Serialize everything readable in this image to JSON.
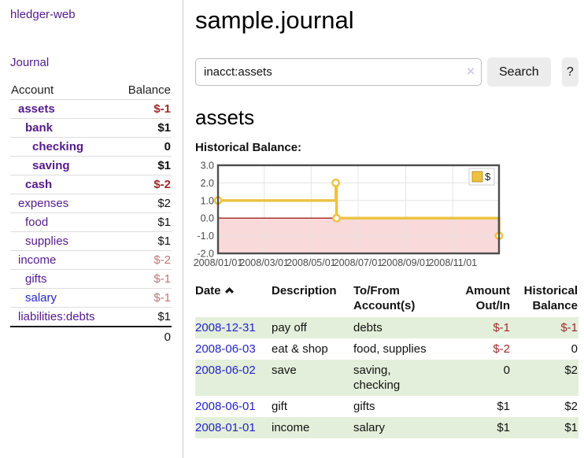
{
  "app": {
    "title": "hledger-web"
  },
  "sidebar": {
    "journal_link": "Journal",
    "table": {
      "headers": [
        "Account",
        "Balance"
      ],
      "rows": [
        {
          "account": "assets",
          "balance": "$-1",
          "indent": 0,
          "bold": true,
          "balance_class": "neg",
          "link": "purple"
        },
        {
          "account": "bank",
          "balance": "$1",
          "indent": 1,
          "bold": true,
          "balance_class": "",
          "link": "purple"
        },
        {
          "account": "checking",
          "balance": "0",
          "indent": 2,
          "bold": true,
          "balance_class": "",
          "link": "purple"
        },
        {
          "account": "saving",
          "balance": "$1",
          "indent": 2,
          "bold": true,
          "balance_class": "",
          "link": "purple"
        },
        {
          "account": "cash",
          "balance": "$-2",
          "indent": 1,
          "bold": true,
          "balance_class": "neg",
          "link": "purple"
        },
        {
          "account": "expenses",
          "balance": "$2",
          "indent": 0,
          "bold": false,
          "balance_class": "",
          "link": "purple"
        },
        {
          "account": "food",
          "balance": "$1",
          "indent": 1,
          "bold": false,
          "balance_class": "",
          "link": "purple"
        },
        {
          "account": "supplies",
          "balance": "$1",
          "indent": 1,
          "bold": false,
          "balance_class": "",
          "link": "purple"
        },
        {
          "account": "income",
          "balance": "$-2",
          "indent": 0,
          "bold": false,
          "balance_class": "neg-soft",
          "link": "purple"
        },
        {
          "account": "gifts",
          "balance": "$-1",
          "indent": 1,
          "bold": false,
          "balance_class": "neg-soft",
          "link": "purple"
        },
        {
          "account": "salary",
          "balance": "$-1",
          "indent": 1,
          "bold": false,
          "balance_class": "neg-soft",
          "link": "blue"
        },
        {
          "account": "liabilities:debts",
          "balance": "$1",
          "indent": 0,
          "bold": false,
          "balance_class": "",
          "link": "purple"
        }
      ],
      "total": "0"
    }
  },
  "header": {
    "title": "sample.journal"
  },
  "search": {
    "value": "inacct:assets",
    "clear_icon": "×",
    "button": "Search",
    "help_button": "?"
  },
  "main": {
    "account_title": "assets",
    "chart_label": "Historical Balance:"
  },
  "chart_data": {
    "type": "line",
    "title": "Historical Balance",
    "series": [
      {
        "name": "$",
        "step": true,
        "points": [
          [
            "2008-01-01",
            1.0
          ],
          [
            "2008-06-02",
            2.0
          ],
          [
            "2008-06-03",
            0.0
          ],
          [
            "2008-12-31",
            -1.0
          ]
        ]
      }
    ],
    "x_range": [
      "2008-01-01",
      "2008-12-31"
    ],
    "x_ticks": [
      "2008/01/01",
      "2008/03/01",
      "2008/05/01",
      "2008/07/01",
      "2008/09/01",
      "2008/11/01"
    ],
    "y_ticks": [
      3.0,
      2.0,
      1.0,
      0.0,
      -1.0,
      -2.0
    ],
    "ylim": [
      -2.0,
      3.0
    ],
    "grid": true,
    "legend_position": "top-right",
    "legend_label": "$"
  },
  "register": {
    "headers": [
      "Date",
      "Description",
      "To/From Account(s)",
      "Amount Out/In",
      "Historical Balance"
    ],
    "rows": [
      {
        "date": "2008-12-31",
        "description": "pay off",
        "accounts": "debts",
        "amount": "$-1",
        "amount_neg": true,
        "balance": "$-1",
        "balance_neg": true,
        "shaded": true
      },
      {
        "date": "2008-06-03",
        "description": "eat & shop",
        "accounts": "food, supplies",
        "amount": "$-2",
        "amount_neg": true,
        "balance": "0",
        "balance_neg": false,
        "shaded": false
      },
      {
        "date": "2008-06-02",
        "description": "save",
        "accounts": "saving,\nchecking",
        "amount": "0",
        "amount_neg": false,
        "balance": "$2",
        "balance_neg": false,
        "shaded": true
      },
      {
        "date": "2008-06-01",
        "description": "gift",
        "accounts": "gifts",
        "amount": "$1",
        "amount_neg": false,
        "balance": "$2",
        "balance_neg": false,
        "shaded": false
      },
      {
        "date": "2008-01-01",
        "description": "income",
        "accounts": "salary",
        "amount": "$1",
        "amount_neg": false,
        "balance": "$1",
        "balance_neg": false,
        "shaded": true
      }
    ]
  },
  "colors": {
    "link_purple": "#551a8b",
    "link_blue": "#2323cc",
    "negative": "#9e2a2b",
    "negative_soft": "#c07576",
    "row_shade_green": "#e3efda",
    "chart_line": "#edc240",
    "chart_marker_fill": "#ffffff",
    "chart_negative_fill": "#f9d9d9",
    "chart_zero_line": "#a02222",
    "chart_border": "#4d4d4d",
    "chart_grid": "#e4e4e4",
    "chart_tick_text": "#4a4a4a"
  }
}
